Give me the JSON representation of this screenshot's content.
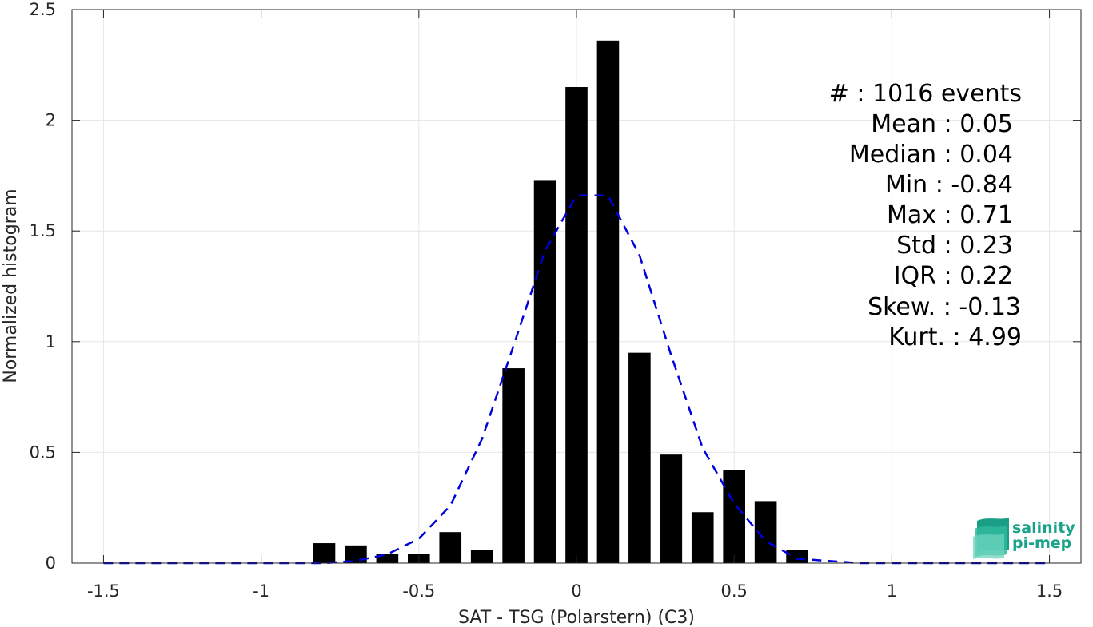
{
  "chart_data": {
    "type": "bar",
    "xlabel": "SAT - TSG (Polarstern) (C3)",
    "ylabel": "Normalized histogram",
    "xlim": [
      -1.6,
      1.6
    ],
    "ylim": [
      0,
      2.5
    ],
    "xticks": [
      -1.5,
      -1,
      -0.5,
      0,
      0.5,
      1,
      1.5
    ],
    "xtick_labels": [
      "-1.5",
      "-1",
      "-0.5",
      "0",
      "0.5",
      "1",
      "1.5"
    ],
    "yticks": [
      0,
      0.5,
      1,
      1.5,
      2,
      2.5
    ],
    "ytick_labels": [
      "0",
      "0.5",
      "1",
      "1.5",
      "2",
      "2.5"
    ],
    "grid": true,
    "bar_width": 0.07,
    "bar_color": "#000000",
    "bars": {
      "x": [
        -0.8,
        -0.7,
        -0.6,
        -0.5,
        -0.4,
        -0.3,
        -0.2,
        -0.1,
        0.0,
        0.1,
        0.2,
        0.3,
        0.4,
        0.5,
        0.6,
        0.7
      ],
      "values": [
        0.09,
        0.08,
        0.04,
        0.04,
        0.14,
        0.06,
        0.88,
        1.73,
        2.15,
        2.36,
        0.95,
        0.49,
        0.23,
        0.42,
        0.28,
        0.06
      ]
    },
    "fit_curve": {
      "style": "dashed",
      "color": "#0000dd",
      "x": [
        -1.5,
        -1.4,
        -1.3,
        -1.2,
        -1.1,
        -1.0,
        -0.9,
        -0.8,
        -0.7,
        -0.6,
        -0.5,
        -0.4,
        -0.3,
        -0.2,
        -0.1,
        0.0,
        0.1,
        0.2,
        0.3,
        0.4,
        0.5,
        0.6,
        0.7,
        0.8,
        0.9,
        1.0,
        1.1,
        1.2,
        1.3,
        1.4,
        1.5
      ],
      "y": [
        0,
        0,
        0,
        0,
        0,
        0,
        0,
        0,
        0.01,
        0.04,
        0.11,
        0.26,
        0.56,
        0.98,
        1.41,
        1.66,
        1.66,
        1.39,
        0.94,
        0.52,
        0.27,
        0.1,
        0.02,
        0.01,
        0,
        0,
        0,
        0,
        0,
        0,
        0
      ]
    }
  },
  "stats_box": {
    "lines": [
      "#  : 1016 events",
      "Mean : 0.05",
      "Median : 0.04",
      "Min : -0.84",
      "Max : 0.71",
      "Std : 0.23",
      "IQR : 0.22",
      "Skew. : -0.13",
      "Kurt. : 4.99"
    ]
  },
  "logo": {
    "line1": "salinity",
    "line2": "pi-mep",
    "color": "#1aa38a"
  }
}
